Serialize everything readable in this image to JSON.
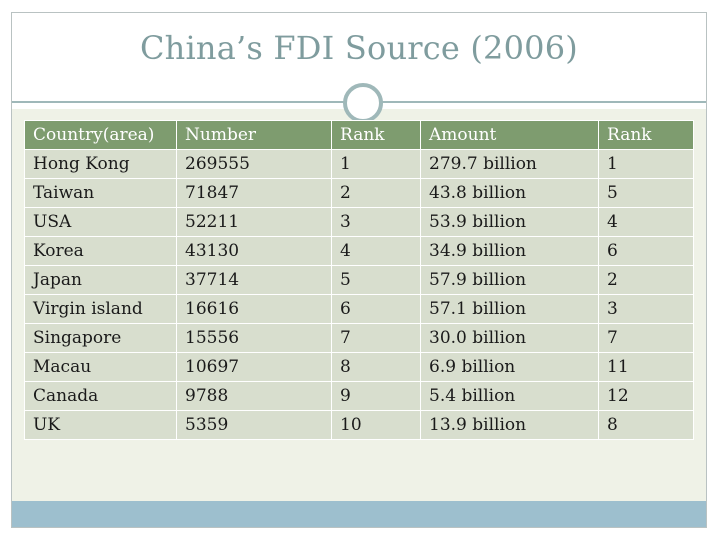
{
  "slide": {
    "title": "China’s FDI Source (2006)"
  },
  "table": {
    "headers": [
      "Country(area)",
      "Number",
      "Rank",
      "Amount",
      "Rank"
    ],
    "rows": [
      [
        "Hong Kong",
        "269555",
        "1",
        "279.7 billion",
        "1"
      ],
      [
        "Taiwan",
        "71847",
        "2",
        "43.8 billion",
        "5"
      ],
      [
        "USA",
        "52211",
        "3",
        "53.9 billion",
        "4"
      ],
      [
        "Korea",
        "43130",
        "4",
        "34.9 billion",
        "6"
      ],
      [
        "Japan",
        "37714",
        "5",
        "57.9 billion",
        "2"
      ],
      [
        "Virgin island",
        "16616",
        "6",
        "57.1 billion",
        "3"
      ],
      [
        "Singapore",
        "15556",
        "7",
        "30.0 billion",
        "7"
      ],
      [
        "Macau",
        "10697",
        "8",
        "6.9 billion",
        "11"
      ],
      [
        "Canada",
        "9788",
        "9",
        "5.4 billion",
        "12"
      ],
      [
        "UK",
        "5359",
        "10",
        "13.9 billion",
        "8"
      ]
    ]
  },
  "colors": {
    "title": "#7f9c9e",
    "header_bg": "#7e9c6f",
    "cell_bg": "#d8dece",
    "content_bg": "#eff2e7",
    "footer_bar": "#9dbfce"
  }
}
